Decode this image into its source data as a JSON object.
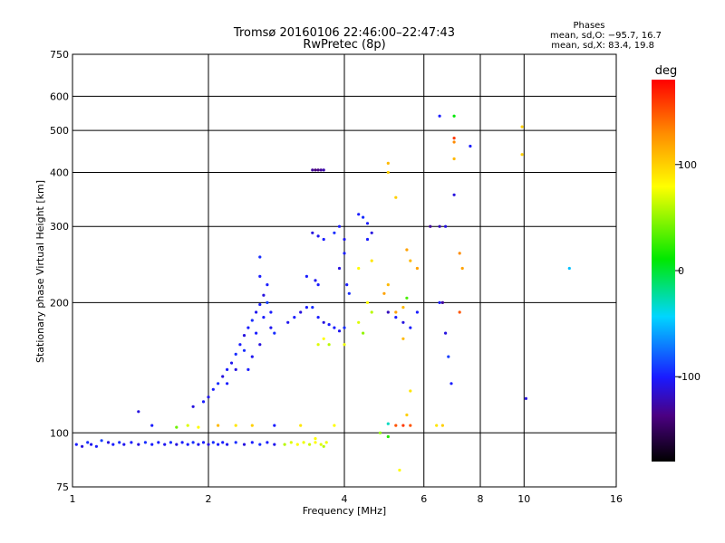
{
  "chart_data": {
    "type": "scatter",
    "title": "Tromsø 20160106 22:46:00–22:47:43",
    "subtitle": "RwPretec (8p)",
    "xlabel": "Frequency [MHz]",
    "ylabel": "Stationary phase Virtual Height [km]",
    "x_scale": "log",
    "y_scale": "log",
    "xlim": [
      1,
      16
    ],
    "ylim": [
      75,
      750
    ],
    "xticks": [
      1,
      2,
      4,
      6,
      8,
      10,
      16
    ],
    "yticks": [
      75,
      100,
      200,
      300,
      400,
      500,
      600,
      750
    ],
    "grid": true,
    "phase_box": {
      "title": "Phases",
      "line_o": "mean, sd,O: −95.7, 16.7",
      "line_x": "mean, sd,X: 83.4, 19.8"
    },
    "colorbar": {
      "label": "deg",
      "ticks": [
        100,
        0,
        -100
      ],
      "range": [
        -180,
        180
      ]
    },
    "series": [
      {
        "points": [
          [
            1.02,
            94,
            -100
          ],
          [
            1.05,
            93,
            -110
          ],
          [
            1.08,
            95,
            -95
          ],
          [
            1.1,
            94,
            -105
          ],
          [
            1.13,
            93,
            -100
          ],
          [
            1.16,
            96,
            -90
          ],
          [
            1.2,
            95,
            -110
          ],
          [
            1.23,
            94,
            -100
          ],
          [
            1.27,
            95,
            -95
          ],
          [
            1.3,
            94,
            -105
          ],
          [
            1.35,
            95,
            -100
          ],
          [
            1.4,
            94,
            -110
          ],
          [
            1.45,
            95,
            -95
          ],
          [
            1.5,
            94,
            -100
          ],
          [
            1.55,
            95,
            -100
          ],
          [
            1.6,
            94,
            -105
          ],
          [
            1.65,
            95,
            -95
          ],
          [
            1.7,
            94,
            -110
          ],
          [
            1.75,
            95,
            -100
          ],
          [
            1.8,
            94,
            -100
          ],
          [
            1.85,
            95,
            -95
          ],
          [
            1.9,
            94,
            -105
          ],
          [
            1.95,
            95,
            -100
          ],
          [
            2.0,
            94,
            -110
          ],
          [
            2.05,
            95,
            -95
          ],
          [
            2.1,
            94,
            -100
          ],
          [
            2.15,
            95,
            -100
          ],
          [
            2.2,
            94,
            -105
          ],
          [
            2.3,
            95,
            -95
          ],
          [
            2.4,
            94,
            -110
          ],
          [
            2.5,
            95,
            -100
          ],
          [
            2.6,
            94,
            -95
          ],
          [
            2.7,
            95,
            -100
          ],
          [
            2.8,
            94,
            -105
          ],
          [
            2.95,
            94,
            60
          ],
          [
            3.05,
            95,
            70
          ],
          [
            3.15,
            94,
            80
          ],
          [
            3.25,
            95,
            75
          ],
          [
            3.35,
            94,
            65
          ],
          [
            3.45,
            95,
            80
          ],
          [
            3.55,
            94,
            70
          ],
          [
            3.65,
            95,
            75
          ],
          [
            3.45,
            97,
            80
          ],
          [
            3.6,
            93,
            60
          ],
          [
            1.4,
            112,
            -110
          ],
          [
            1.5,
            104,
            -100
          ],
          [
            1.7,
            103,
            40
          ],
          [
            1.8,
            104,
            70
          ],
          [
            1.9,
            103,
            80
          ],
          [
            2.1,
            104,
            110
          ],
          [
            2.3,
            104,
            90
          ],
          [
            2.5,
            104,
            100
          ],
          [
            2.8,
            104,
            -100
          ],
          [
            3.2,
            104,
            90
          ],
          [
            3.8,
            104,
            80
          ],
          [
            1.85,
            115,
            -110
          ],
          [
            1.95,
            118,
            -100
          ],
          [
            2.0,
            121,
            -105
          ],
          [
            2.05,
            126,
            -100
          ],
          [
            2.1,
            130,
            -95
          ],
          [
            2.15,
            135,
            -110
          ],
          [
            2.2,
            140,
            -100
          ],
          [
            2.25,
            145,
            -105
          ],
          [
            2.3,
            152,
            -95
          ],
          [
            2.35,
            160,
            -100
          ],
          [
            2.4,
            168,
            -110
          ],
          [
            2.45,
            175,
            -100
          ],
          [
            2.5,
            182,
            -95
          ],
          [
            2.55,
            190,
            -105
          ],
          [
            2.6,
            198,
            -100
          ],
          [
            2.65,
            208,
            -110
          ],
          [
            2.7,
            220,
            -100
          ],
          [
            2.75,
            190,
            -100
          ],
          [
            2.8,
            170,
            -95
          ],
          [
            2.5,
            150,
            -105
          ],
          [
            2.6,
            160,
            -110
          ],
          [
            2.45,
            140,
            -100
          ],
          [
            2.7,
            200,
            -90
          ],
          [
            2.55,
            170,
            -100
          ],
          [
            2.4,
            155,
            -95
          ],
          [
            2.65,
            185,
            -100
          ],
          [
            2.75,
            175,
            -105
          ],
          [
            2.3,
            140,
            -110
          ],
          [
            2.2,
            130,
            -100
          ],
          [
            2.6,
            230,
            -100
          ],
          [
            2.6,
            255,
            -95
          ],
          [
            3.0,
            180,
            -105
          ],
          [
            3.1,
            185,
            -100
          ],
          [
            3.2,
            190,
            -110
          ],
          [
            3.3,
            195,
            -100
          ],
          [
            3.4,
            195,
            -95
          ],
          [
            3.5,
            185,
            -100
          ],
          [
            3.6,
            180,
            -110
          ],
          [
            3.7,
            178,
            -100
          ],
          [
            3.8,
            175,
            -100
          ],
          [
            3.9,
            172,
            -105
          ],
          [
            4.0,
            175,
            -95
          ],
          [
            3.3,
            230,
            -100
          ],
          [
            3.45,
            225,
            -105
          ],
          [
            3.5,
            220,
            -100
          ],
          [
            3.4,
            290,
            -110
          ],
          [
            3.5,
            285,
            -105
          ],
          [
            3.6,
            280,
            -100
          ],
          [
            3.8,
            290,
            -95
          ],
          [
            3.9,
            300,
            -100
          ],
          [
            4.0,
            280,
            -105
          ],
          [
            4.0,
            260,
            -100
          ],
          [
            3.9,
            240,
            -110
          ],
          [
            4.05,
            220,
            -100
          ],
          [
            4.1,
            210,
            -95
          ],
          [
            3.4,
            405,
            -130
          ],
          [
            3.45,
            405,
            -140
          ],
          [
            3.5,
            405,
            -135
          ],
          [
            3.55,
            405,
            -130
          ],
          [
            3.6,
            405,
            -125
          ],
          [
            4.3,
            320,
            -100
          ],
          [
            4.4,
            315,
            -95
          ],
          [
            4.5,
            305,
            -100
          ],
          [
            4.6,
            290,
            -110
          ],
          [
            4.5,
            280,
            -100
          ],
          [
            3.5,
            160,
            70
          ],
          [
            3.6,
            165,
            80
          ],
          [
            3.7,
            160,
            60
          ],
          [
            4.0,
            160,
            75
          ],
          [
            4.3,
            180,
            70
          ],
          [
            4.5,
            200,
            80
          ],
          [
            4.6,
            190,
            60
          ],
          [
            4.4,
            170,
            50
          ],
          [
            4.3,
            240,
            80
          ],
          [
            4.6,
            250,
            90
          ],
          [
            4.9,
            210,
            120
          ],
          [
            5.0,
            220,
            110
          ],
          [
            5.5,
            205,
            30
          ],
          [
            5.2,
            190,
            120
          ],
          [
            5.4,
            195,
            110
          ],
          [
            5.0,
            420,
            110
          ],
          [
            5.0,
            400,
            100
          ],
          [
            5.2,
            350,
            100
          ],
          [
            5.5,
            265,
            120
          ],
          [
            5.6,
            250,
            110
          ],
          [
            5.8,
            240,
            120
          ],
          [
            5.4,
            165,
            110
          ],
          [
            5.6,
            125,
            90
          ],
          [
            5.5,
            110,
            100
          ],
          [
            5.0,
            105,
            -30
          ],
          [
            5.2,
            104,
            150
          ],
          [
            5.4,
            104,
            160
          ],
          [
            5.6,
            104,
            150
          ],
          [
            6.4,
            104,
            90
          ],
          [
            6.6,
            104,
            100
          ],
          [
            5.0,
            190,
            -120
          ],
          [
            5.2,
            185,
            -100
          ],
          [
            5.4,
            180,
            -110
          ],
          [
            5.6,
            175,
            -100
          ],
          [
            5.8,
            190,
            -100
          ],
          [
            6.2,
            300,
            -130
          ],
          [
            6.5,
            300,
            -120
          ],
          [
            6.7,
            300,
            -110
          ],
          [
            6.5,
            200,
            -100
          ],
          [
            6.6,
            200,
            -130
          ],
          [
            6.7,
            170,
            -110
          ],
          [
            6.8,
            150,
            -90
          ],
          [
            6.9,
            130,
            -100
          ],
          [
            6.5,
            540,
            -100
          ],
          [
            7.0,
            540,
            10
          ],
          [
            7.0,
            480,
            160
          ],
          [
            7.0,
            470,
            130
          ],
          [
            7.0,
            430,
            110
          ],
          [
            7.0,
            355,
            -110
          ],
          [
            7.6,
            460,
            -100
          ],
          [
            7.2,
            260,
            130
          ],
          [
            7.3,
            240,
            120
          ],
          [
            7.2,
            190,
            150
          ],
          [
            9.9,
            510,
            100
          ],
          [
            9.9,
            440,
            100
          ],
          [
            10.1,
            120,
            -110
          ],
          [
            12.6,
            240,
            -50
          ],
          [
            5.3,
            82,
            80
          ],
          [
            5.0,
            98,
            20
          ],
          [
            4.8,
            100,
            50
          ]
        ]
      }
    ]
  }
}
